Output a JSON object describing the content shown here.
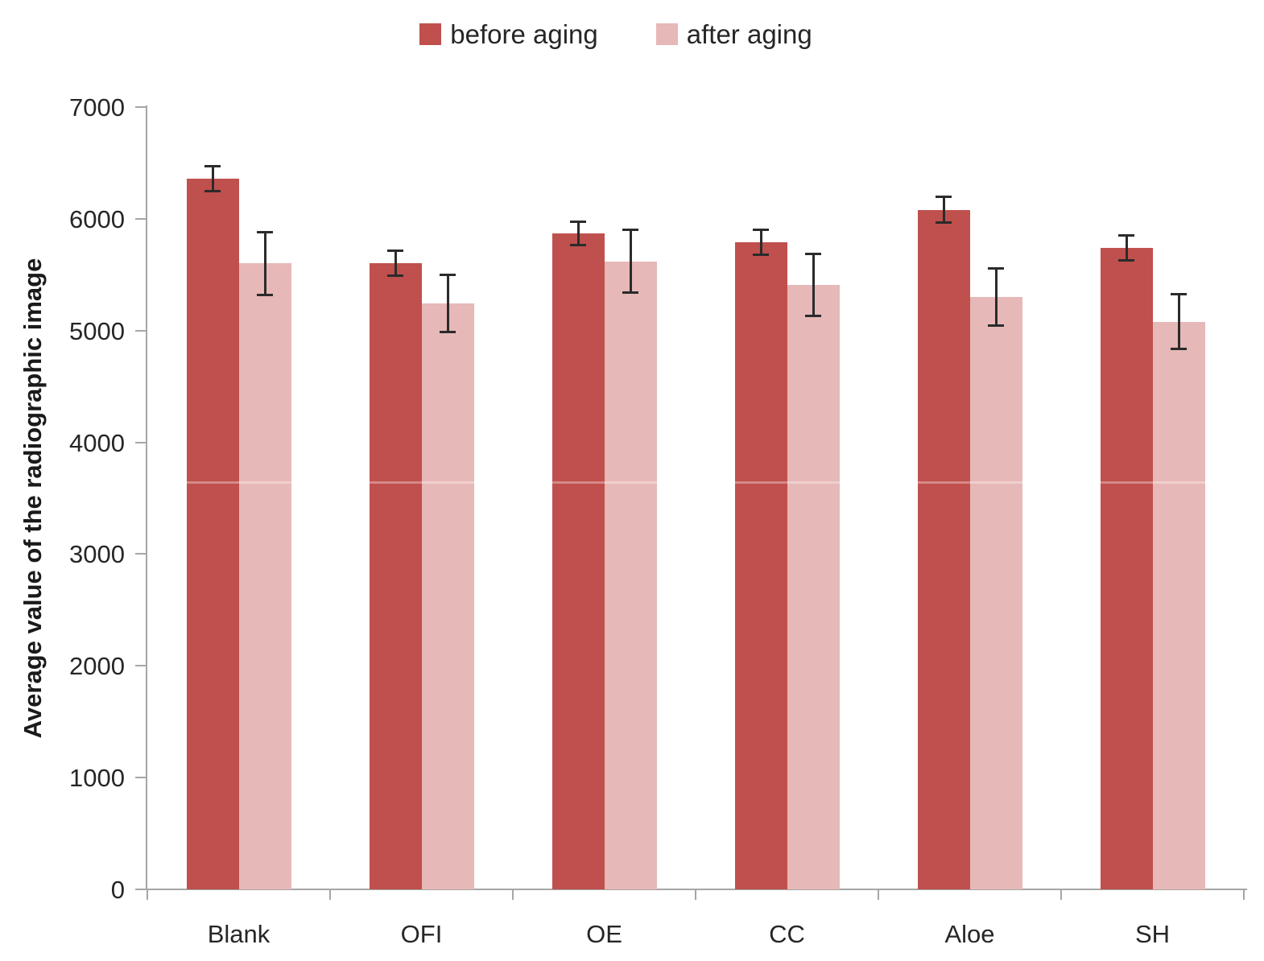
{
  "legend": {
    "items": [
      {
        "label": "before aging",
        "color": "#c0504d"
      },
      {
        "label": "after aging",
        "color": "#e6b8b7"
      }
    ]
  },
  "chart_data": {
    "type": "bar",
    "title": "",
    "categories": [
      "Blank",
      "OFI",
      "OE",
      "CC",
      "Aloe",
      "SH"
    ],
    "series": [
      {
        "name": "before aging",
        "color": "#c0504d",
        "values": [
          6360,
          5600,
          5870,
          5790,
          6080,
          5740
        ],
        "errors": [
          115,
          115,
          110,
          115,
          120,
          115
        ]
      },
      {
        "name": "after aging",
        "color": "#e6b8b7",
        "values": [
          5600,
          5240,
          5620,
          5410,
          5300,
          5080
        ],
        "errors": [
          285,
          260,
          285,
          280,
          260,
          250
        ]
      }
    ],
    "xlabel": "",
    "ylabel": "Average value of the radiographic image",
    "ylim": [
      0,
      7000
    ],
    "yticks": [
      0,
      1000,
      2000,
      3000,
      4000,
      5000,
      6000,
      7000
    ],
    "grid": false,
    "legend_position": "top",
    "bar_errors_shown": true,
    "colors": {
      "error_bar": "#2b2b2b",
      "axis": "#a6a6a6",
      "tick_label": "#262626"
    }
  }
}
